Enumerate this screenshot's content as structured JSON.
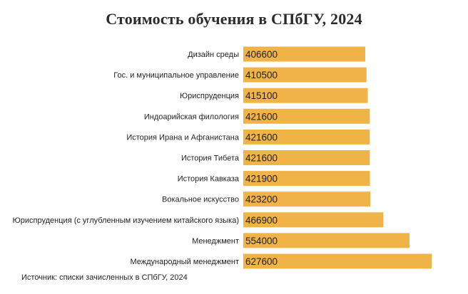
{
  "chart_data": {
    "type": "bar",
    "orientation": "horizontal",
    "title": "Стоимость обучения в СПбГУ, 2024",
    "categories": [
      "Дизайн среды",
      "Гос. и муниципальное управление",
      "Юриспруденция",
      "Индоарийская филология",
      "История Ирана и Афганистана",
      "История Тибета",
      "История Кавказа",
      "Вокальное искусство",
      "Юриспруденция (с углубленным изучением китайского языка)",
      "Менеджмент",
      "Международный менеджмент"
    ],
    "values": [
      406600,
      410500,
      415100,
      421600,
      421600,
      421600,
      421900,
      423200,
      466900,
      554000,
      627600
    ],
    "value_labels": [
      "406600",
      "410500",
      "415100",
      "421600",
      "421600",
      "421600",
      "421900",
      "423200",
      "466900",
      "554000",
      "627600"
    ],
    "xlabel": "",
    "ylabel": "",
    "grid": false,
    "legend": "none",
    "bar_color": "#F0B347",
    "source": "Источник: списки зачисленных в СПбГУ, 2024"
  }
}
